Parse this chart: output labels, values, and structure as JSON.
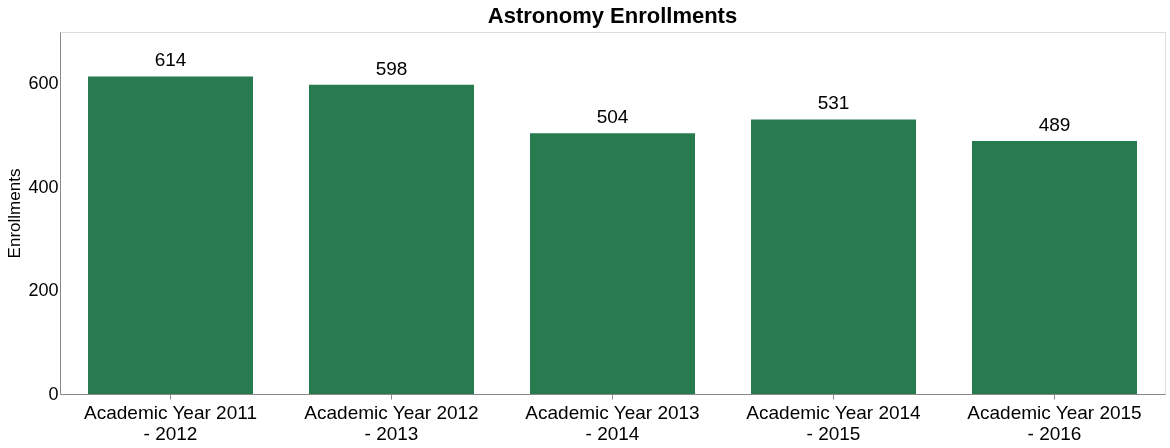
{
  "chart_data": {
    "type": "bar",
    "title": "Astronomy Enrollments",
    "ylabel": "Enrollments",
    "categories": [
      "Academic Year 2011\n- 2012",
      "Academic Year 2012\n- 2013",
      "Academic Year 2013\n- 2014",
      "Academic Year 2014\n- 2015",
      "Academic Year 2015\n- 2016"
    ],
    "values": [
      614,
      598,
      504,
      531,
      489
    ],
    "color": "#277b4e",
    "ylim": [
      0,
      700
    ],
    "yticks": [
      0,
      200,
      400,
      600
    ],
    "grid": false,
    "data_labels": true
  }
}
